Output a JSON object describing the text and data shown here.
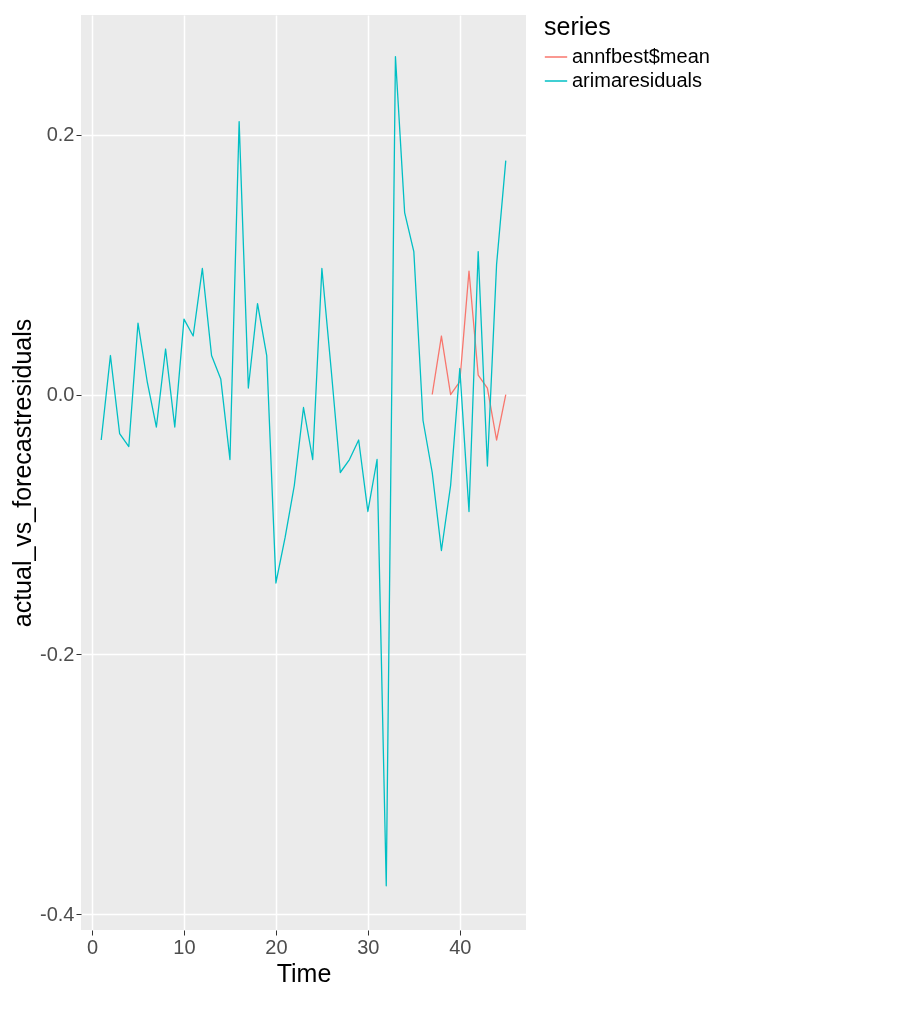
{
  "chart_data": {
    "type": "line",
    "xlabel": "Time",
    "ylabel": "actual_vs_forecastresiduals",
    "legend_title": "series",
    "legend": "right",
    "grid": true,
    "xlim": [
      -1.2,
      47.2
    ],
    "xticks": [
      0,
      10,
      20,
      30,
      40
    ],
    "ylim": [
      -0.412,
      0.292
    ],
    "yticks": [
      {
        "value": -0.4,
        "label": "-0.4"
      },
      {
        "value": -0.2,
        "label": "-0.2"
      },
      {
        "value": 0,
        "label": "0.0"
      },
      {
        "value": 0.2,
        "label": "0.2"
      }
    ],
    "series": [
      {
        "name": "annfbest$mean",
        "color": "#f8766d",
        "x": [
          37,
          38,
          39,
          40,
          41,
          42,
          43,
          44,
          45
        ],
        "values": [
          0.0,
          0.045,
          0.0,
          0.01,
          0.095,
          0.015,
          0.005,
          -0.035,
          0.0
        ]
      },
      {
        "name": "arimaresiduals",
        "color": "#00bfc4",
        "x": [
          1,
          2,
          3,
          4,
          5,
          6,
          7,
          8,
          9,
          10,
          11,
          12,
          13,
          14,
          15,
          16,
          17,
          18,
          19,
          20,
          21,
          22,
          23,
          24,
          25,
          26,
          27,
          28,
          29,
          30,
          31,
          32,
          33,
          34,
          35,
          36,
          37,
          38,
          39,
          40,
          41,
          42,
          43,
          44,
          45
        ],
        "values": [
          -0.035,
          0.03,
          -0.03,
          -0.04,
          0.055,
          0.01,
          -0.025,
          0.035,
          -0.025,
          0.058,
          0.045,
          0.097,
          0.03,
          0.012,
          -0.05,
          0.21,
          0.005,
          0.07,
          0.03,
          -0.145,
          -0.11,
          -0.07,
          -0.01,
          -0.05,
          0.097,
          0.02,
          -0.06,
          -0.05,
          -0.035,
          -0.09,
          -0.05,
          -0.378,
          0.26,
          0.14,
          0.11,
          -0.02,
          -0.06,
          -0.12,
          -0.07,
          0.02,
          -0.09,
          0.11,
          -0.055,
          0.1,
          0.18
        ]
      }
    ]
  }
}
